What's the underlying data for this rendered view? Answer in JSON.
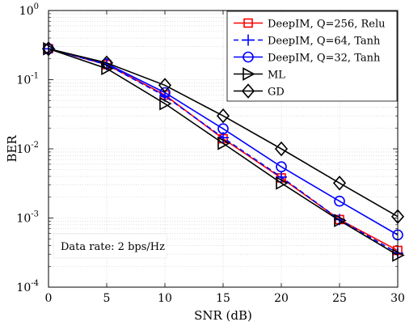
{
  "chart_data": {
    "type": "line",
    "title": "",
    "xlabel": "SNR (dB)",
    "ylabel": "BER",
    "x": [
      0,
      5,
      10,
      15,
      20,
      25,
      30
    ],
    "xlim": [
      0,
      30
    ],
    "ylim": [
      0.0001,
      1
    ],
    "yscale": "log",
    "xticks": [
      0,
      5,
      10,
      15,
      20,
      25,
      30
    ],
    "yticks": [
      {
        "value": 0.0001,
        "base": "10",
        "exp": "-4"
      },
      {
        "value": 0.001,
        "base": "10",
        "exp": "-3"
      },
      {
        "value": 0.01,
        "base": "10",
        "exp": "-2"
      },
      {
        "value": 0.1,
        "base": "10",
        "exp": "-1"
      },
      {
        "value": 1,
        "base": "10",
        "exp": "0"
      }
    ],
    "grid": true,
    "legend_position": "top-right",
    "annotation": "Data rate: 2 bps/Hz",
    "series": [
      {
        "name": "DeepIM, Q=256, Relu",
        "color": "#ff0000",
        "dash": "solid",
        "marker": "square",
        "values": [
          0.28,
          0.165,
          0.06,
          0.014,
          0.0038,
          0.00095,
          0.00034
        ]
      },
      {
        "name": "DeepIM, Q=64, Tanh",
        "color": "#0000ff",
        "dash": "dashed",
        "marker": "plus",
        "values": [
          0.28,
          0.165,
          0.058,
          0.0145,
          0.0039,
          0.00095,
          0.00031
        ]
      },
      {
        "name": "DeepIM, Q=32, Tanh",
        "color": "#0000ff",
        "dash": "solid",
        "marker": "circle",
        "values": [
          0.28,
          0.17,
          0.065,
          0.0195,
          0.0055,
          0.00175,
          0.00057
        ]
      },
      {
        "name": "ML",
        "color": "#000000",
        "dash": "solid",
        "marker": "triangle-right",
        "values": [
          0.28,
          0.145,
          0.045,
          0.012,
          0.0032,
          0.00092,
          0.00029
        ]
      },
      {
        "name": "GD",
        "color": "#000000",
        "dash": "solid",
        "marker": "diamond",
        "values": [
          0.28,
          0.175,
          0.083,
          0.03,
          0.01,
          0.0032,
          0.00105
        ]
      }
    ]
  }
}
